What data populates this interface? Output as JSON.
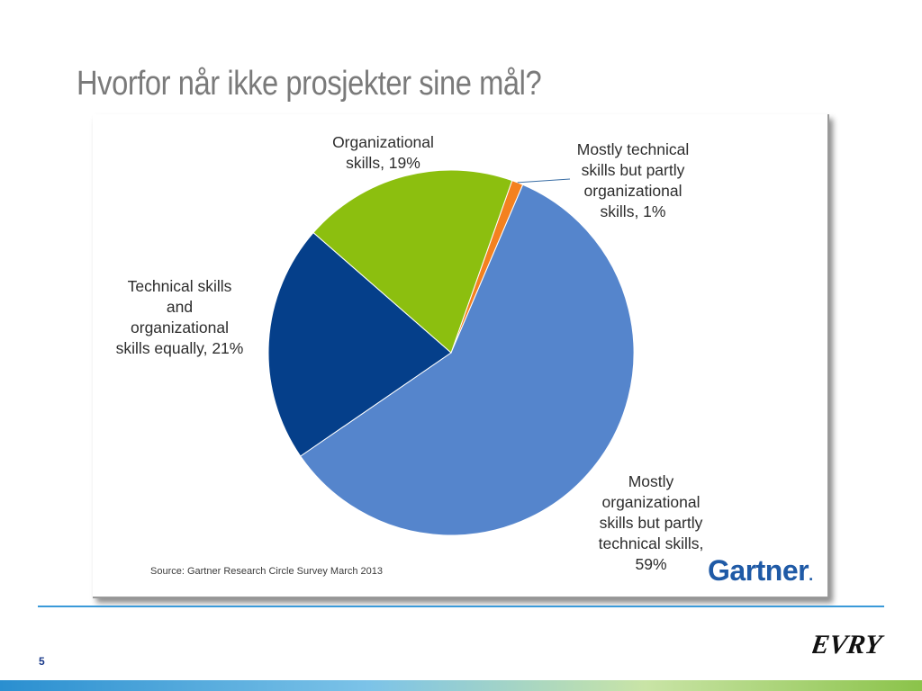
{
  "slide": {
    "title": "Hvorfor når ikke prosjekter sine mål?",
    "page_number": "5",
    "logo_text": "EVRY"
  },
  "chart_data": {
    "type": "pie",
    "title": "",
    "slices": [
      {
        "label_lines": [
          "Mostly technical",
          "skills but partly",
          "organizational",
          "skills, 1%"
        ],
        "value": 1,
        "color": "#f4811f"
      },
      {
        "label_lines": [
          "Mostly",
          "organizational",
          "skills but partly",
          "technical skills,",
          "59%"
        ],
        "value": 59,
        "color": "#5585cc"
      },
      {
        "label_lines": [
          "Technical skills",
          "and",
          "organizational",
          "skills equally, 21%"
        ],
        "value": 21,
        "color": "#053f8a"
      },
      {
        "label_lines": [
          "Organizational",
          "skills, 19%"
        ],
        "value": 19,
        "color": "#8cbf0f"
      }
    ],
    "source": "Source: Gartner Research Circle Survey March 2013",
    "brand": "Gartner",
    "brand_dot": "."
  },
  "colors": {
    "title": "#7a7a7a",
    "divider": "#3a9ad9",
    "page_number": "#1a3a8a",
    "gartner_blue": "#1f5aa6"
  }
}
